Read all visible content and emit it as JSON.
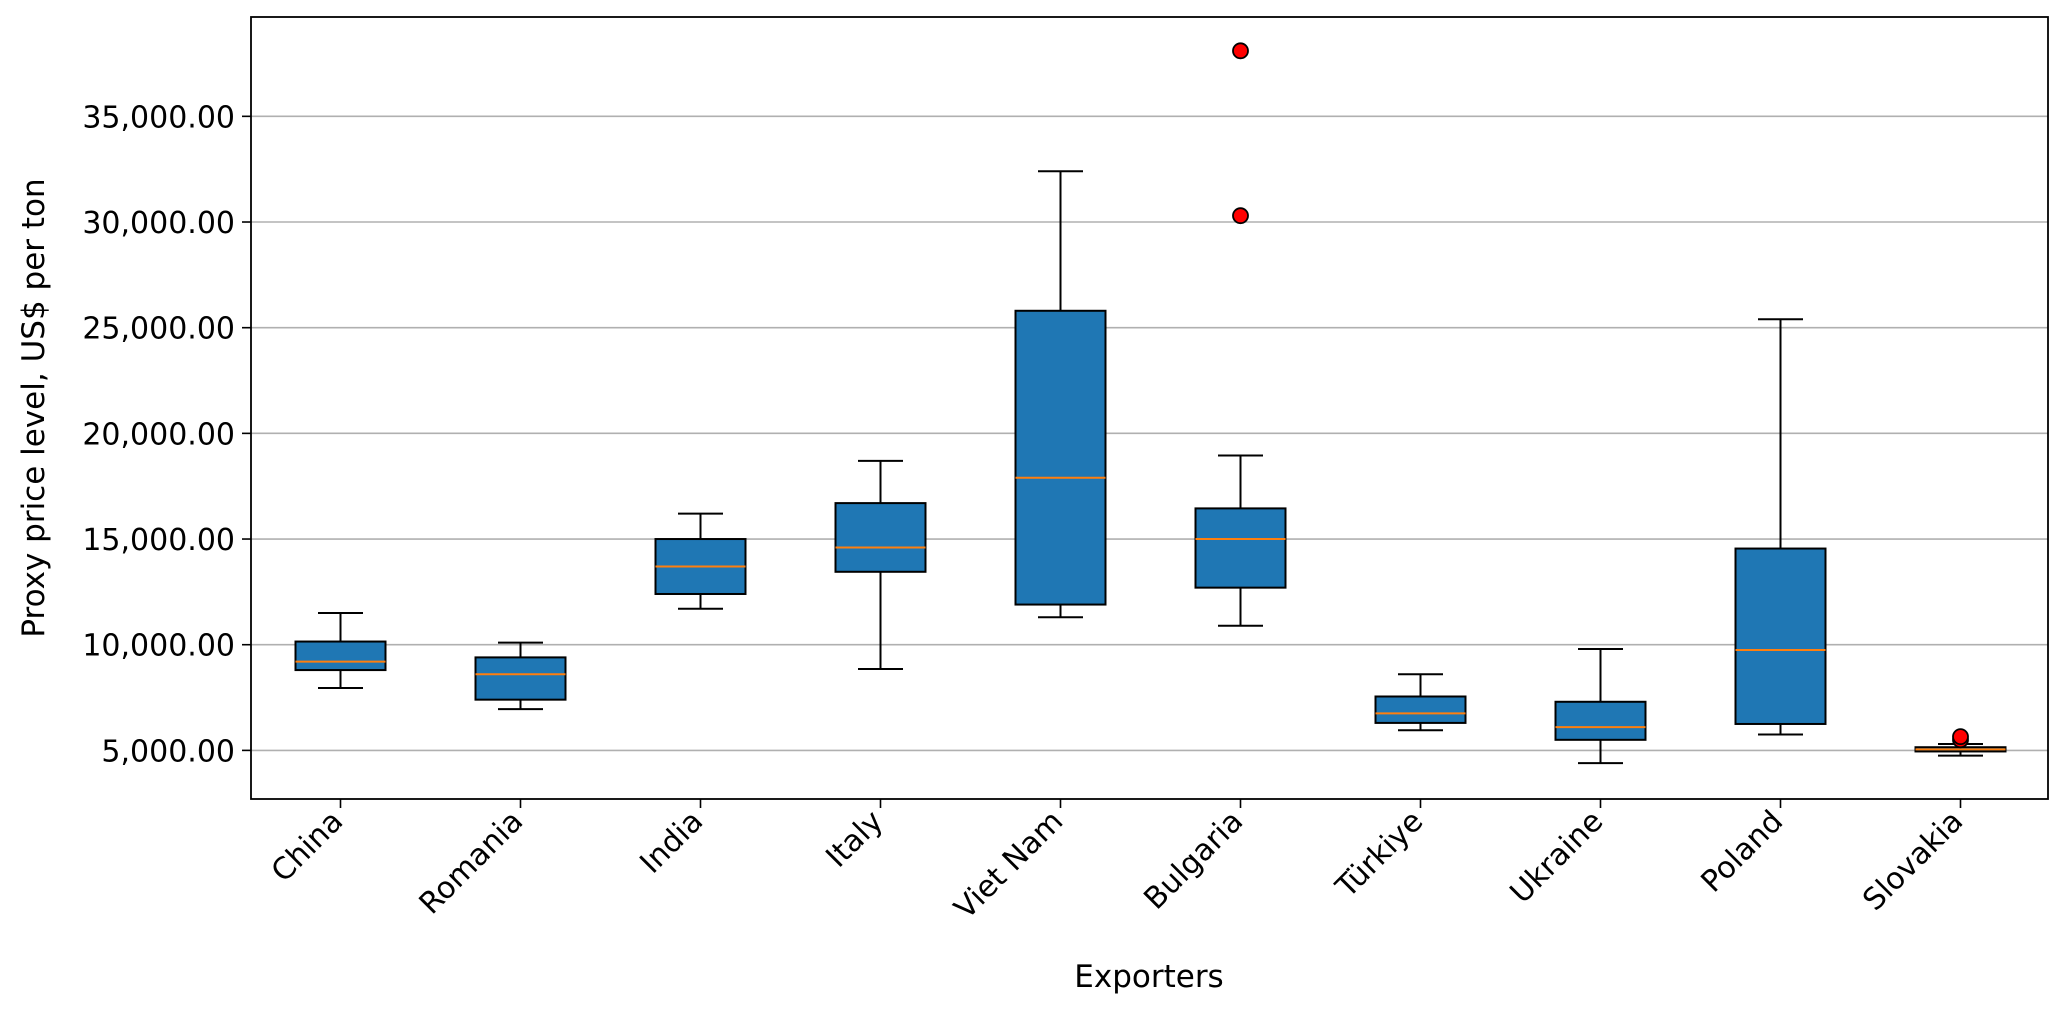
{
  "chart_data": {
    "type": "box",
    "xlabel": "Exporters",
    "ylabel": "Proxy price level, US$ per ton",
    "ylim": [
      2700,
      39700
    ],
    "yticks": [
      5000,
      10000,
      15000,
      20000,
      25000,
      30000,
      35000
    ],
    "ytick_labels": [
      "5,000.00",
      "10,000.00",
      "15,000.00",
      "20,000.00",
      "25,000.00",
      "30,000.00",
      "35,000.00"
    ],
    "grid": "horizontal",
    "box_color": "#1f77b4",
    "median_color": "#ff7f0e",
    "outlier_color": "#ff0000",
    "categories": [
      "China",
      "Romania",
      "India",
      "Italy",
      "Viet Nam",
      "Bulgaria",
      "Türkiye",
      "Ukraine",
      "Poland",
      "Slovakia"
    ],
    "boxes": [
      {
        "whisker_low": 7950,
        "q1": 8800,
        "median": 9200,
        "q3": 10150,
        "whisker_high": 11500,
        "outliers": []
      },
      {
        "whisker_low": 6950,
        "q1": 7400,
        "median": 8600,
        "q3": 9400,
        "whisker_high": 10100,
        "outliers": []
      },
      {
        "whisker_low": 11700,
        "q1": 12400,
        "median": 13700,
        "q3": 15000,
        "whisker_high": 16200,
        "outliers": []
      },
      {
        "whisker_low": 8850,
        "q1": 13450,
        "median": 14600,
        "q3": 16700,
        "whisker_high": 18700,
        "outliers": []
      },
      {
        "whisker_low": 11300,
        "q1": 11900,
        "median": 17900,
        "q3": 25800,
        "whisker_high": 32400,
        "outliers": []
      },
      {
        "whisker_low": 10900,
        "q1": 12700,
        "median": 15000,
        "q3": 16450,
        "whisker_high": 18950,
        "outliers": [
          30300,
          38100
        ]
      },
      {
        "whisker_low": 5950,
        "q1": 6300,
        "median": 6750,
        "q3": 7550,
        "whisker_high": 8600,
        "outliers": []
      },
      {
        "whisker_low": 4400,
        "q1": 5500,
        "median": 6100,
        "q3": 7300,
        "whisker_high": 9800,
        "outliers": []
      },
      {
        "whisker_low": 5750,
        "q1": 6250,
        "median": 9750,
        "q3": 14550,
        "whisker_high": 25400,
        "outliers": []
      },
      {
        "whisker_low": 4750,
        "q1": 4950,
        "median": 5050,
        "q3": 5150,
        "whisker_high": 5300,
        "outliers": [
          5500,
          5650
        ]
      }
    ]
  }
}
